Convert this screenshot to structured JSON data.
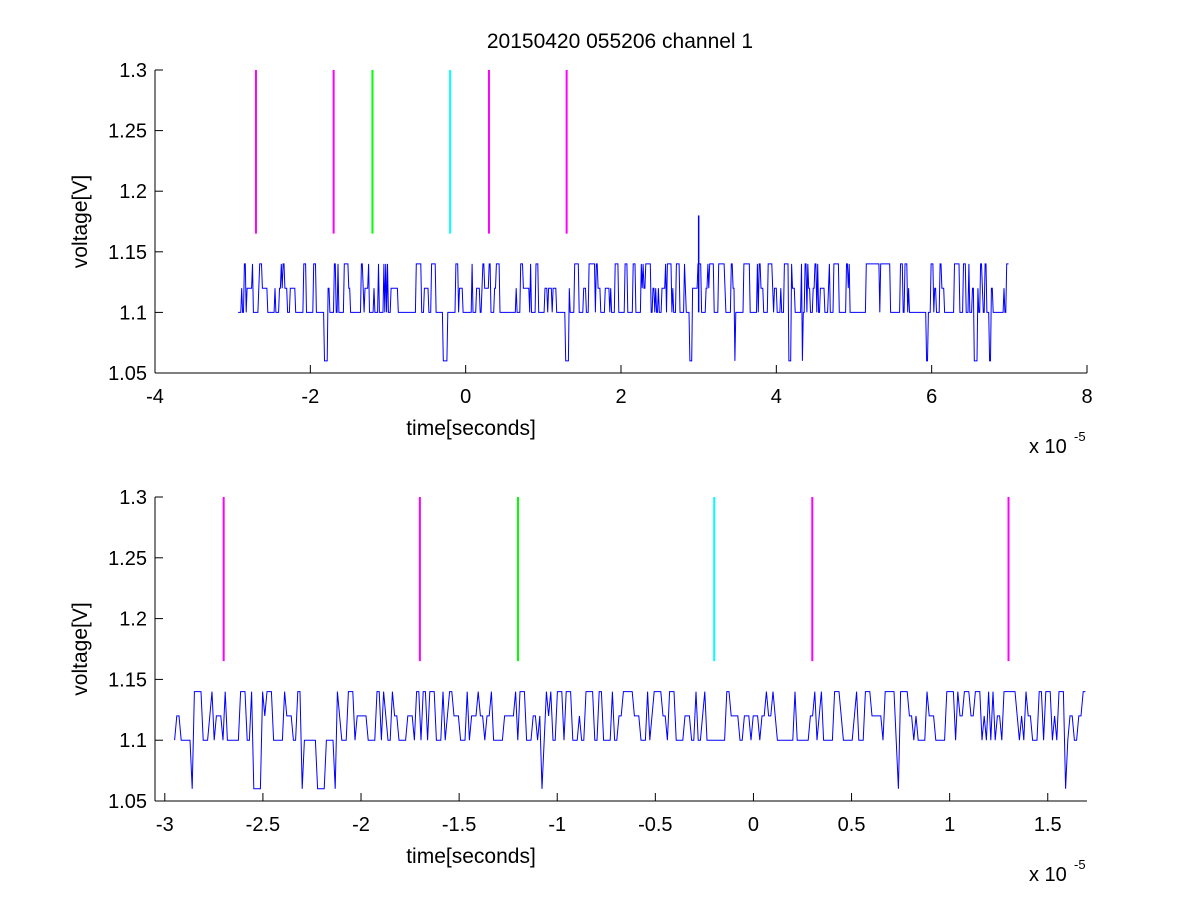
{
  "title": "20150420 055206 channel 1",
  "colors": {
    "background": "#ffffff",
    "axis": "#000000",
    "signal": "#0000ff",
    "magenta": "#ff00ff",
    "green": "#00ff00",
    "cyan": "#00ffff"
  },
  "chart_data": [
    {
      "type": "line",
      "title": "20150420 055206 channel 1",
      "xlabel": "time[seconds]",
      "ylabel": "voltage[V]",
      "x_exponent_label": "x 10",
      "x_exponent_power": "-5",
      "xlim": [
        -4,
        8
      ],
      "ylim": [
        1.05,
        1.3
      ],
      "x_ticks": [
        -4,
        -2,
        0,
        2,
        4,
        6,
        8
      ],
      "x_tick_labels": [
        "-4",
        "-2",
        "0",
        "2",
        "4",
        "6",
        "8"
      ],
      "y_ticks": [
        1.05,
        1.1,
        1.15,
        1.2,
        1.25,
        1.3
      ],
      "y_tick_labels": [
        "1.05",
        "1.1",
        "1.15",
        "1.2",
        "1.25",
        "1.3"
      ],
      "grid": false,
      "signal": {
        "x_range": [
          -2.93,
          7.0
        ],
        "baseline": 1.1,
        "levels": [
          1.06,
          1.1,
          1.12,
          1.14
        ],
        "spike": {
          "x": 3.0,
          "y": 1.18
        }
      },
      "markers": [
        {
          "x": -2.7,
          "color": "magenta",
          "y_range": [
            1.165,
            1.3
          ]
        },
        {
          "x": -1.7,
          "color": "magenta",
          "y_range": [
            1.165,
            1.3
          ]
        },
        {
          "x": -1.2,
          "color": "green",
          "y_range": [
            1.165,
            1.3
          ]
        },
        {
          "x": -0.2,
          "color": "cyan",
          "y_range": [
            1.165,
            1.3
          ]
        },
        {
          "x": 0.3,
          "color": "magenta",
          "y_range": [
            1.165,
            1.3
          ]
        },
        {
          "x": 1.3,
          "color": "magenta",
          "y_range": [
            1.165,
            1.3
          ]
        }
      ]
    },
    {
      "type": "line",
      "title": "",
      "xlabel": "time[seconds]",
      "ylabel": "voltage[V]",
      "x_exponent_label": "x 10",
      "x_exponent_power": "-5",
      "xlim": [
        -3.05,
        1.7
      ],
      "ylim": [
        1.05,
        1.3
      ],
      "x_ticks": [
        -3,
        -2.5,
        -2,
        -1.5,
        -1,
        -0.5,
        0,
        0.5,
        1,
        1.5
      ],
      "x_tick_labels": [
        "-3",
        "-2.5",
        "-2",
        "-1.5",
        "-1",
        "-0.5",
        "0",
        "0.5",
        "1",
        "1.5"
      ],
      "y_ticks": [
        1.05,
        1.1,
        1.15,
        1.2,
        1.25,
        1.3
      ],
      "y_tick_labels": [
        "1.05",
        "1.1",
        "1.15",
        "1.2",
        "1.25",
        "1.3"
      ],
      "grid": false,
      "signal": {
        "x_range": [
          -2.95,
          1.7
        ],
        "baseline": 1.1,
        "levels": [
          1.06,
          1.1,
          1.12,
          1.14
        ]
      },
      "markers": [
        {
          "x": -2.7,
          "color": "magenta",
          "y_range": [
            1.165,
            1.3
          ]
        },
        {
          "x": -1.7,
          "color": "magenta",
          "y_range": [
            1.165,
            1.3
          ]
        },
        {
          "x": -1.2,
          "color": "green",
          "y_range": [
            1.165,
            1.3
          ]
        },
        {
          "x": -0.2,
          "color": "cyan",
          "y_range": [
            1.165,
            1.3
          ]
        },
        {
          "x": 0.3,
          "color": "magenta",
          "y_range": [
            1.165,
            1.3
          ]
        },
        {
          "x": 1.3,
          "color": "magenta",
          "y_range": [
            1.165,
            1.3
          ]
        }
      ]
    }
  ]
}
